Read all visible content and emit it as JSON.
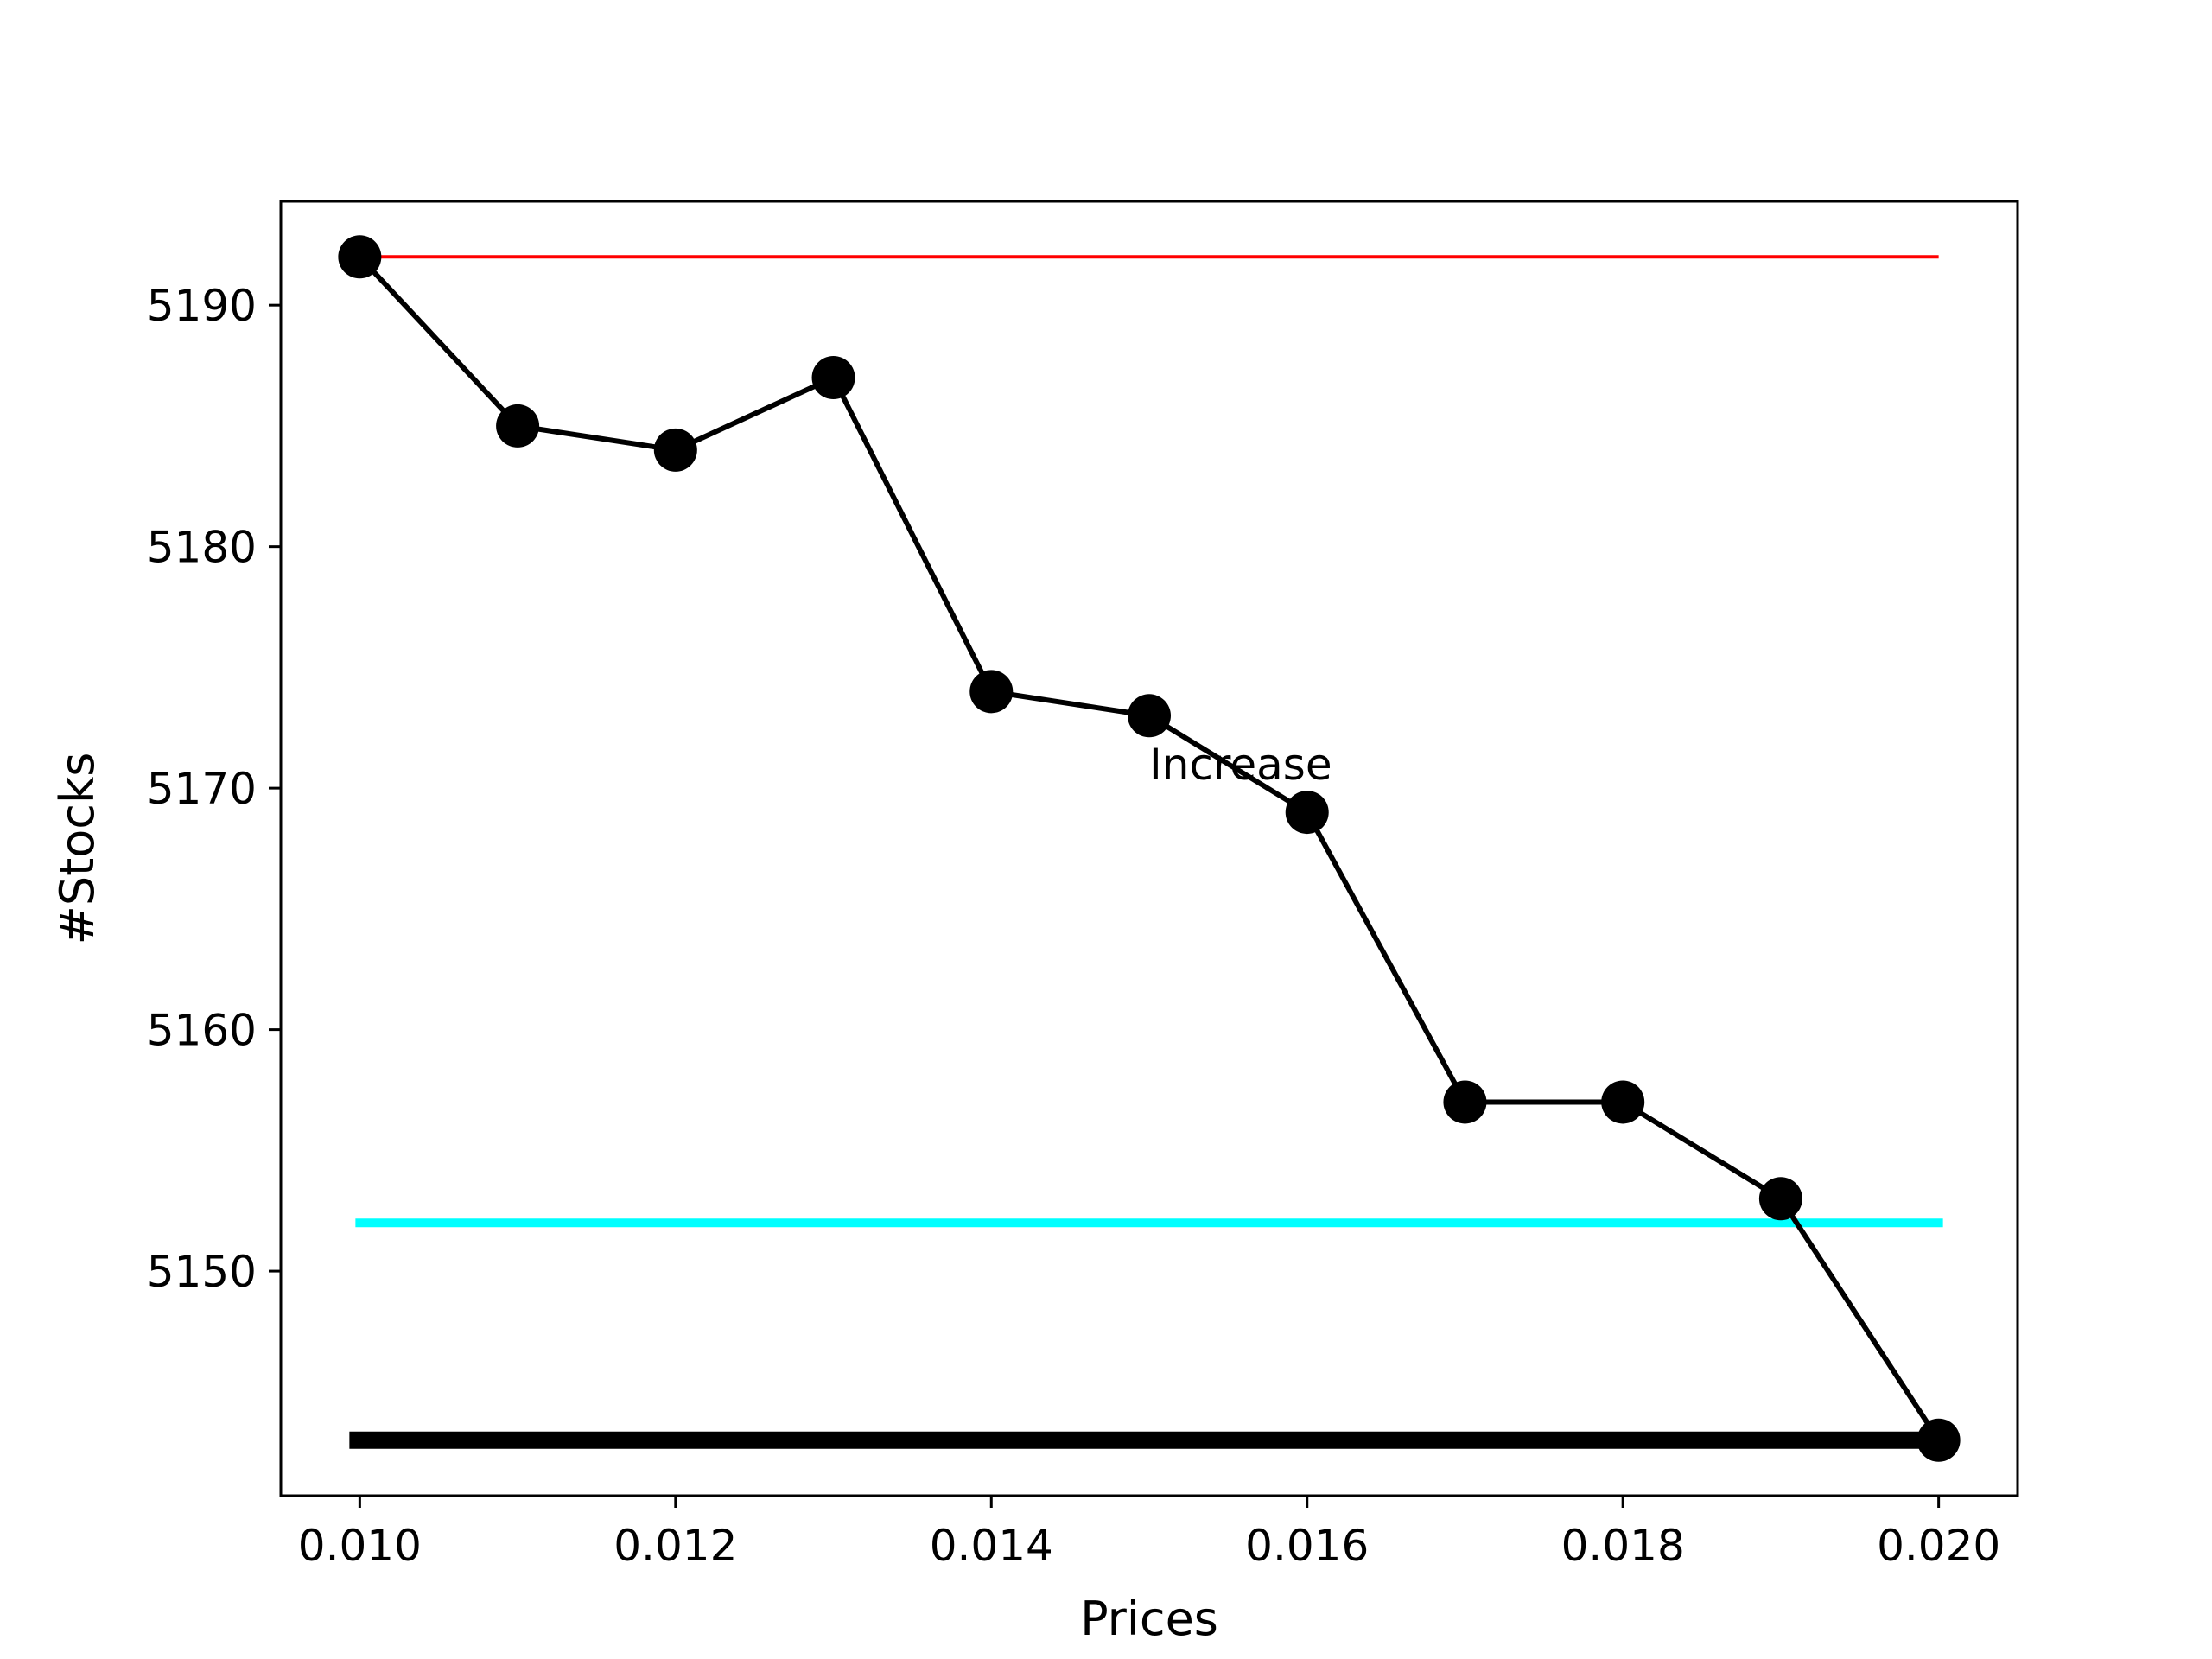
{
  "chart_data": {
    "type": "line",
    "title": "",
    "xlabel": "Prices",
    "ylabel": "#Stocks",
    "xlim": [
      0.0095,
      0.0205
    ],
    "ylim": [
      5140.7,
      5194.3
    ],
    "xticks": [
      0.01,
      0.012,
      0.014,
      0.016,
      0.018,
      0.02
    ],
    "xtick_labels": [
      "0.010",
      "0.012",
      "0.014",
      "0.016",
      "0.018",
      "0.020"
    ],
    "yticks": [
      5150,
      5160,
      5170,
      5180,
      5190
    ],
    "ytick_labels": [
      "5150",
      "5160",
      "5170",
      "5180",
      "5190"
    ],
    "grid": false,
    "legend": "none",
    "series": [
      {
        "color": "#000000",
        "marker": "circle",
        "x": [
          0.01,
          0.011,
          0.012,
          0.013,
          0.014,
          0.015,
          0.016,
          0.017,
          0.018,
          0.019,
          0.02
        ],
        "y": [
          5192,
          5185,
          5184,
          5187,
          5174,
          5173,
          5169,
          5157,
          5157,
          5153,
          5143
        ]
      }
    ],
    "hlines": [
      {
        "y": 5192,
        "x": [
          0.01,
          0.02
        ],
        "color": "#ff0000",
        "weight": "thin"
      },
      {
        "y": 5152,
        "x": [
          0.01,
          0.02
        ],
        "color": "#00ffff",
        "weight": "medium"
      },
      {
        "y": 5143,
        "x": [
          0.01,
          0.02
        ],
        "color": "#000000",
        "weight": "thick"
      }
    ],
    "annotations": [
      {
        "text": "Increase",
        "x": 0.015,
        "y": 5171
      }
    ]
  }
}
